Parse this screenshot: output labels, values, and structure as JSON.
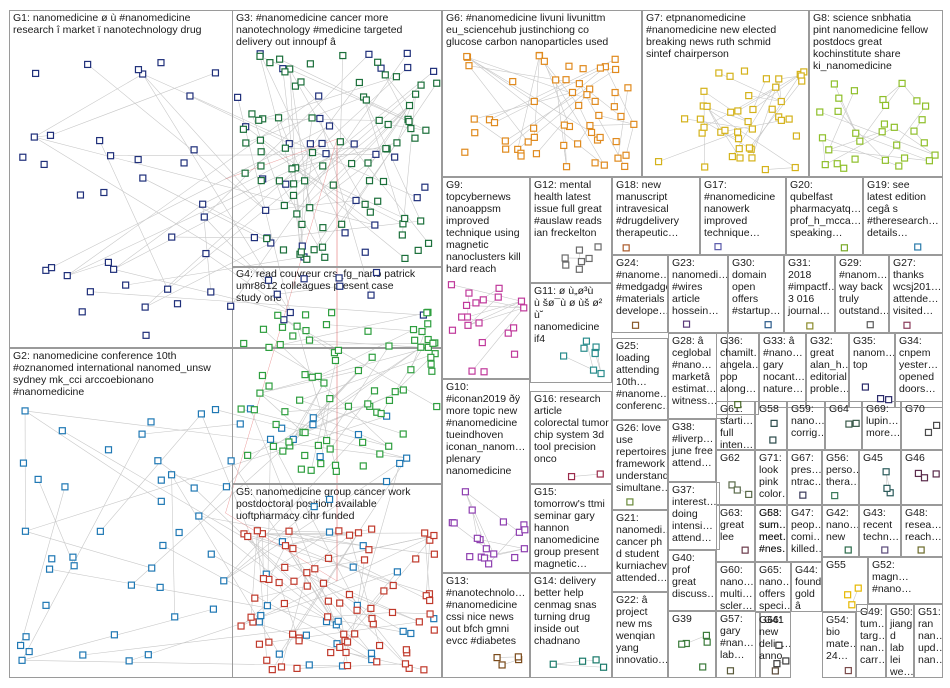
{
  "graph_title": "",
  "colors": {
    "border": "#9a9a9a",
    "edge_within": "#c8c8c8",
    "edge_between": "#e05a5a"
  },
  "groups": [
    {
      "id": "G1",
      "label": "G1: nanomedicine ø ù #nanomedicine\nresearch î market ï nanotechnology drug",
      "color": "#1f2f7a"
    },
    {
      "id": "G2",
      "label": "G2: nanomedicine conference 10th\n#oznanomed international nanomed_unsw\nsydney mk_cci arccoebionano\n#nanomedicine",
      "color": "#1f78b4"
    },
    {
      "id": "G3",
      "label": "G3: #nanomedicine cancer more\nnanotechnology #medicine targeted\ndelivery out innoupf â",
      "color": "#1b6f3a"
    },
    {
      "id": "G4",
      "label": "G4: read couvreur crs_fg_nano patrick\numr8612 colleagues present case\nstudy one",
      "color": "#2e9e3e"
    },
    {
      "id": "G5",
      "label": "G5: nanomedicine group cancer work\npostdoctoral position available\nuoftpharmacy cihr funded",
      "color": "#c0392b"
    },
    {
      "id": "G6",
      "label": "G6: #nanomedicine livuni livunittm\neu_sciencehub justinchiong co\nglucose carbon nanoparticles used",
      "color": "#e08a1e"
    },
    {
      "id": "G7",
      "label": "G7: etpnanomedicine\n#nanomedicine new elected\nbreaking news ruth schmid\nsintef chairperson",
      "color": "#d4b21a"
    },
    {
      "id": "G8",
      "label": "G8: science snbhatia\npint nanomedicine fellow\npostdocs great\nkochinstitute share\nki_nanomedicine",
      "color": "#8fbf2a"
    },
    {
      "id": "G9",
      "label": "G9:\ntopcybernews\nnanoappsm\nimproved\ntechnique using\nmagnetic\nnanoclusters kill\nhard reach",
      "color": "#c0399b"
    },
    {
      "id": "G10",
      "label": "G10:\n#iconan2019 ðÿ\nmore topic new\n#nanomedicine\ntueindhoven\niconan_nanom…\nplenary\nnanomedicine",
      "color": "#8e3fb0"
    },
    {
      "id": "G11",
      "label": "G11: ø ù„ø³ù\nù šø¯ù ø ùš ø² ù˘\nnanomedicine\nif4",
      "color": "#2a8c8c"
    },
    {
      "id": "G12",
      "label": "G12: mental\nhealth latest\nissue full great\n#auslaw reads\nian freckelton",
      "color": "#6a6a6a"
    },
    {
      "id": "G13",
      "label": "G13:\n#nanotechnolo…\n#nanomedicine\ncssi nice news\nout bfch gmni\nevcc #diabetes",
      "color": "#7a4a1a"
    },
    {
      "id": "G14",
      "label": "G14: delivery\nbetter help\ncenmag snas\nturning drug\ninside out\nchadnano",
      "color": "#1a7a6a"
    },
    {
      "id": "G15",
      "label": "G15:\ntomorrow's ttmi\nseminar gary\nhannon\nnanomedicine\ngroup present\nmagnetic…",
      "color": "#4a6a9a"
    },
    {
      "id": "G16",
      "label": "G16: research\narticle\ncolorectal tumor\nchip system 3d\ntool precision\nonco",
      "color": "#9a2a4a"
    },
    {
      "id": "G17",
      "label": "G17:\n#nanomedicine\nnanowerk\nimproved\ntechnique…",
      "color": "#5a5aaa"
    },
    {
      "id": "G18",
      "label": "G18: new\nmanuscript\nintravesical\n#drugdelivery\ntherapeutic…",
      "color": "#aa5a2a"
    },
    {
      "id": "G19",
      "label": "G19: see\nlatest edition\ncegâ s\n#theresearch…\ndetails…",
      "color": "#2a7aaa"
    },
    {
      "id": "G20",
      "label": "G20:\nqubelfast\npharmacyatq…\nprof_h_mcca…\nspeaking…",
      "color": "#7aaa2a"
    },
    {
      "id": "G21",
      "label": "G21:\nnanomedi…\ncancer ph\nd student\nkurniachev\nattended…",
      "color": "#3a3a8a"
    },
    {
      "id": "G22",
      "label": "G22: â\nproject\nnew ms\nwenqian\nyang\ninnovatio…",
      "color": "#2a8a4a"
    },
    {
      "id": "G23",
      "label": "G23:\nnanomedi…\n#wires\narticle\nhossein…",
      "color": "#5a3a7a"
    },
    {
      "id": "G24",
      "label": "G24:\n#nanome…\n#medgadget\n#materials\ndevelope…",
      "color": "#8a5a2a"
    },
    {
      "id": "G25",
      "label": "G25:\nloading\nattending\n10th…\n#nanome…\nconferenc…",
      "color": "#3a6a8a"
    },
    {
      "id": "G26",
      "label": "G26: love\nuse\nrepertoires\nframework\nunderstand\nsimultane…",
      "color": "#6a8a3a"
    },
    {
      "id": "G27",
      "label": "G27:\nthanks\nwcsj201…\nattende…\nvisited…",
      "color": "#8a3a5a"
    },
    {
      "id": "G28",
      "label": "G28: â\nceglobal\n#nano…\nmarketâ\nestimat…\nwitness…",
      "color": "#3a5a3a"
    },
    {
      "id": "G29",
      "label": "G29:\n#nanom…\nway back\ntruly\noutstand…",
      "color": "#5a5a5a"
    },
    {
      "id": "G30",
      "label": "G30:\ndomain\nopen\noffers\n#startup…",
      "color": "#2a5a8a"
    },
    {
      "id": "G31",
      "label": "G31:\n2018\n#impactf…\n3 016\njournal…",
      "color": "#8a8a2a"
    },
    {
      "id": "G32",
      "label": "G32:\ngreat\nalan_h…\neditorial\nproble…",
      "color": "#4a2a6a"
    },
    {
      "id": "G33",
      "label": "G33: â\n#nano…\ngary\nnocant…\nnature…",
      "color": "#2a6a6a"
    },
    {
      "id": "G34",
      "label": "G34:\ncnpem\nyester…\nopened\ndoors…",
      "color": "#6a2a2a"
    },
    {
      "id": "G35",
      "label": "G35:\nnanom…\ntop",
      "color": "#2a2a6a"
    },
    {
      "id": "G36",
      "label": "G36:\nchamilt…\nangela…\npop\nalong…",
      "color": "#4a6a2a"
    },
    {
      "id": "G37",
      "label": "G37:\ninterest…\ndoing\nintensi…\nattend…",
      "color": "#6a4a2a"
    },
    {
      "id": "G38",
      "label": "G38:\n#liverp…\njune free\nattend…",
      "color": "#2a4a6a"
    },
    {
      "id": "G39",
      "label": "G39",
      "color": "#3a7a3a"
    },
    {
      "id": "G40",
      "label": "G40:\nprof\ngreat\ndiscuss…",
      "color": "#7a3a7a"
    },
    {
      "id": "G41",
      "label": "G41",
      "color": "#3a3a3a"
    },
    {
      "id": "G42",
      "label": "G42:\nnano…\nnew",
      "color": "#2a6a4a"
    },
    {
      "id": "G43",
      "label": "G43:\nrecent\ntechn…",
      "color": "#5a4a7a"
    },
    {
      "id": "G44",
      "label": "G44:\nfound\ngold â",
      "color": "#7a5a3a"
    },
    {
      "id": "G45",
      "label": "G45",
      "color": "#2a5a5a"
    },
    {
      "id": "G46",
      "label": "G46",
      "color": "#5a2a4a"
    },
    {
      "id": "G47",
      "label": "G47:\npeop…\ncomi…\nkilled…",
      "color": "#3a5a7a"
    },
    {
      "id": "G48",
      "label": "G48:\nresea…\nreach…",
      "color": "#6a6a2a"
    },
    {
      "id": "G49",
      "label": "G49:\ntum…\ntarg…\nnan…\ncarr…",
      "color": "#2a3a5a"
    },
    {
      "id": "G50",
      "label": "G50:\njiang\nd lab\nlei\nwe…",
      "color": "#5a3a3a"
    },
    {
      "id": "G51",
      "label": "G51:\nran\nnan…\nupd…\nnan…",
      "color": "#3a6a5a"
    },
    {
      "id": "G52",
      "label": "G52:\nmagn…\n#nano…",
      "color": "#6a3a6a"
    },
    {
      "id": "G53",
      "label": "G53:\nsum…\nmeet…\n#nes…",
      "color": "#4a4a7a"
    },
    {
      "id": "G54",
      "label": "G54:\nbio\nmate…\n24…",
      "color": "#7a4a4a"
    },
    {
      "id": "G55",
      "label": "G55",
      "color": "#e6b800"
    },
    {
      "id": "G56",
      "label": "G56:\nperso…\nthera…",
      "color": "#3a7a5a"
    },
    {
      "id": "G57",
      "label": "G57:\ngary\n#nan…\nlab…",
      "color": "#5a5a3a"
    },
    {
      "id": "G58",
      "label": "G58",
      "color": "#2a4a4a"
    },
    {
      "id": "G59",
      "label": "G59:\nnano…\ncorrig…",
      "color": "#4a3a5a"
    },
    {
      "id": "G60",
      "label": "G60:\nnano…\nmulti…\nscler…",
      "color": "#6a5a3a"
    },
    {
      "id": "G61",
      "label": "G61:\nstarti…\nfull\ninten…",
      "color": "#3a4a6a"
    },
    {
      "id": "G62",
      "label": "G62",
      "color": "#5a6a4a"
    },
    {
      "id": "G63",
      "label": "G63:\ngreat\nlee",
      "color": "#6a3a4a"
    },
    {
      "id": "G64",
      "label": "G64",
      "color": "#3a5a4a"
    },
    {
      "id": "G65",
      "label": "G65:\nnano…\noffers\nspeci…",
      "color": "#4a5a6a"
    },
    {
      "id": "G66",
      "label": "G66:\nnew\ndelig…\nanno…",
      "color": "#5a4a3a"
    },
    {
      "id": "G67",
      "label": "G67:\npres…\nntrac…",
      "color": "#3a3a5a"
    },
    {
      "id": "G68",
      "label": "G68:\nsum…\nmeet…\n#nes…",
      "color": "#4a6a6a"
    },
    {
      "id": "G69",
      "label": "G69:\nlupin…\nmore…",
      "color": "#6a4a6a"
    },
    {
      "id": "G70",
      "label": "G70",
      "color": "#4a4a4a"
    },
    {
      "id": "G71",
      "label": "G71:\nlook\npink\ncolor…",
      "color": "#5a3a5a"
    }
  ]
}
